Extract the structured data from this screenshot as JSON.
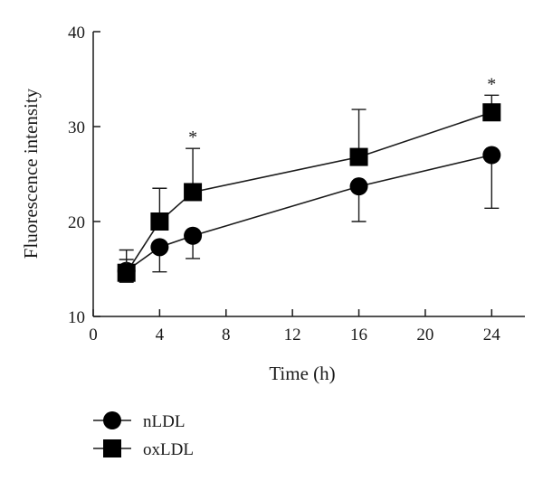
{
  "chart_data": {
    "type": "line",
    "xlabel": "Time (h)",
    "ylabel": "Fluorescence intensity",
    "xlim": [
      0,
      26
    ],
    "ylim": [
      10,
      40
    ],
    "xticks": [
      0,
      4,
      8,
      12,
      16,
      20,
      24
    ],
    "yticks": [
      10,
      20,
      30,
      40
    ],
    "grid": false,
    "legend_position": "bottom-left",
    "series": [
      {
        "name": "nLDL",
        "marker": "circle",
        "x": [
          2,
          4,
          6,
          16,
          24
        ],
        "y": [
          14.8,
          17.3,
          18.5,
          23.7,
          27.0
        ],
        "error_minus": [
          1.2,
          2.6,
          2.4,
          3.7,
          5.6
        ],
        "error_plus": [
          1.2,
          0,
          0,
          0,
          0
        ]
      },
      {
        "name": "oxLDL",
        "marker": "square",
        "x": [
          2,
          4,
          6,
          16,
          24
        ],
        "y": [
          14.6,
          20.0,
          23.1,
          26.8,
          31.5
        ],
        "error_minus": [
          0,
          0,
          0,
          0,
          0
        ],
        "error_plus": [
          2.4,
          3.5,
          4.6,
          5.0,
          1.8
        ]
      }
    ],
    "annotations": [
      {
        "text": "*",
        "x": 6,
        "y": 27.7
      },
      {
        "text": "*",
        "x": 24,
        "y": 33.3
      }
    ]
  }
}
